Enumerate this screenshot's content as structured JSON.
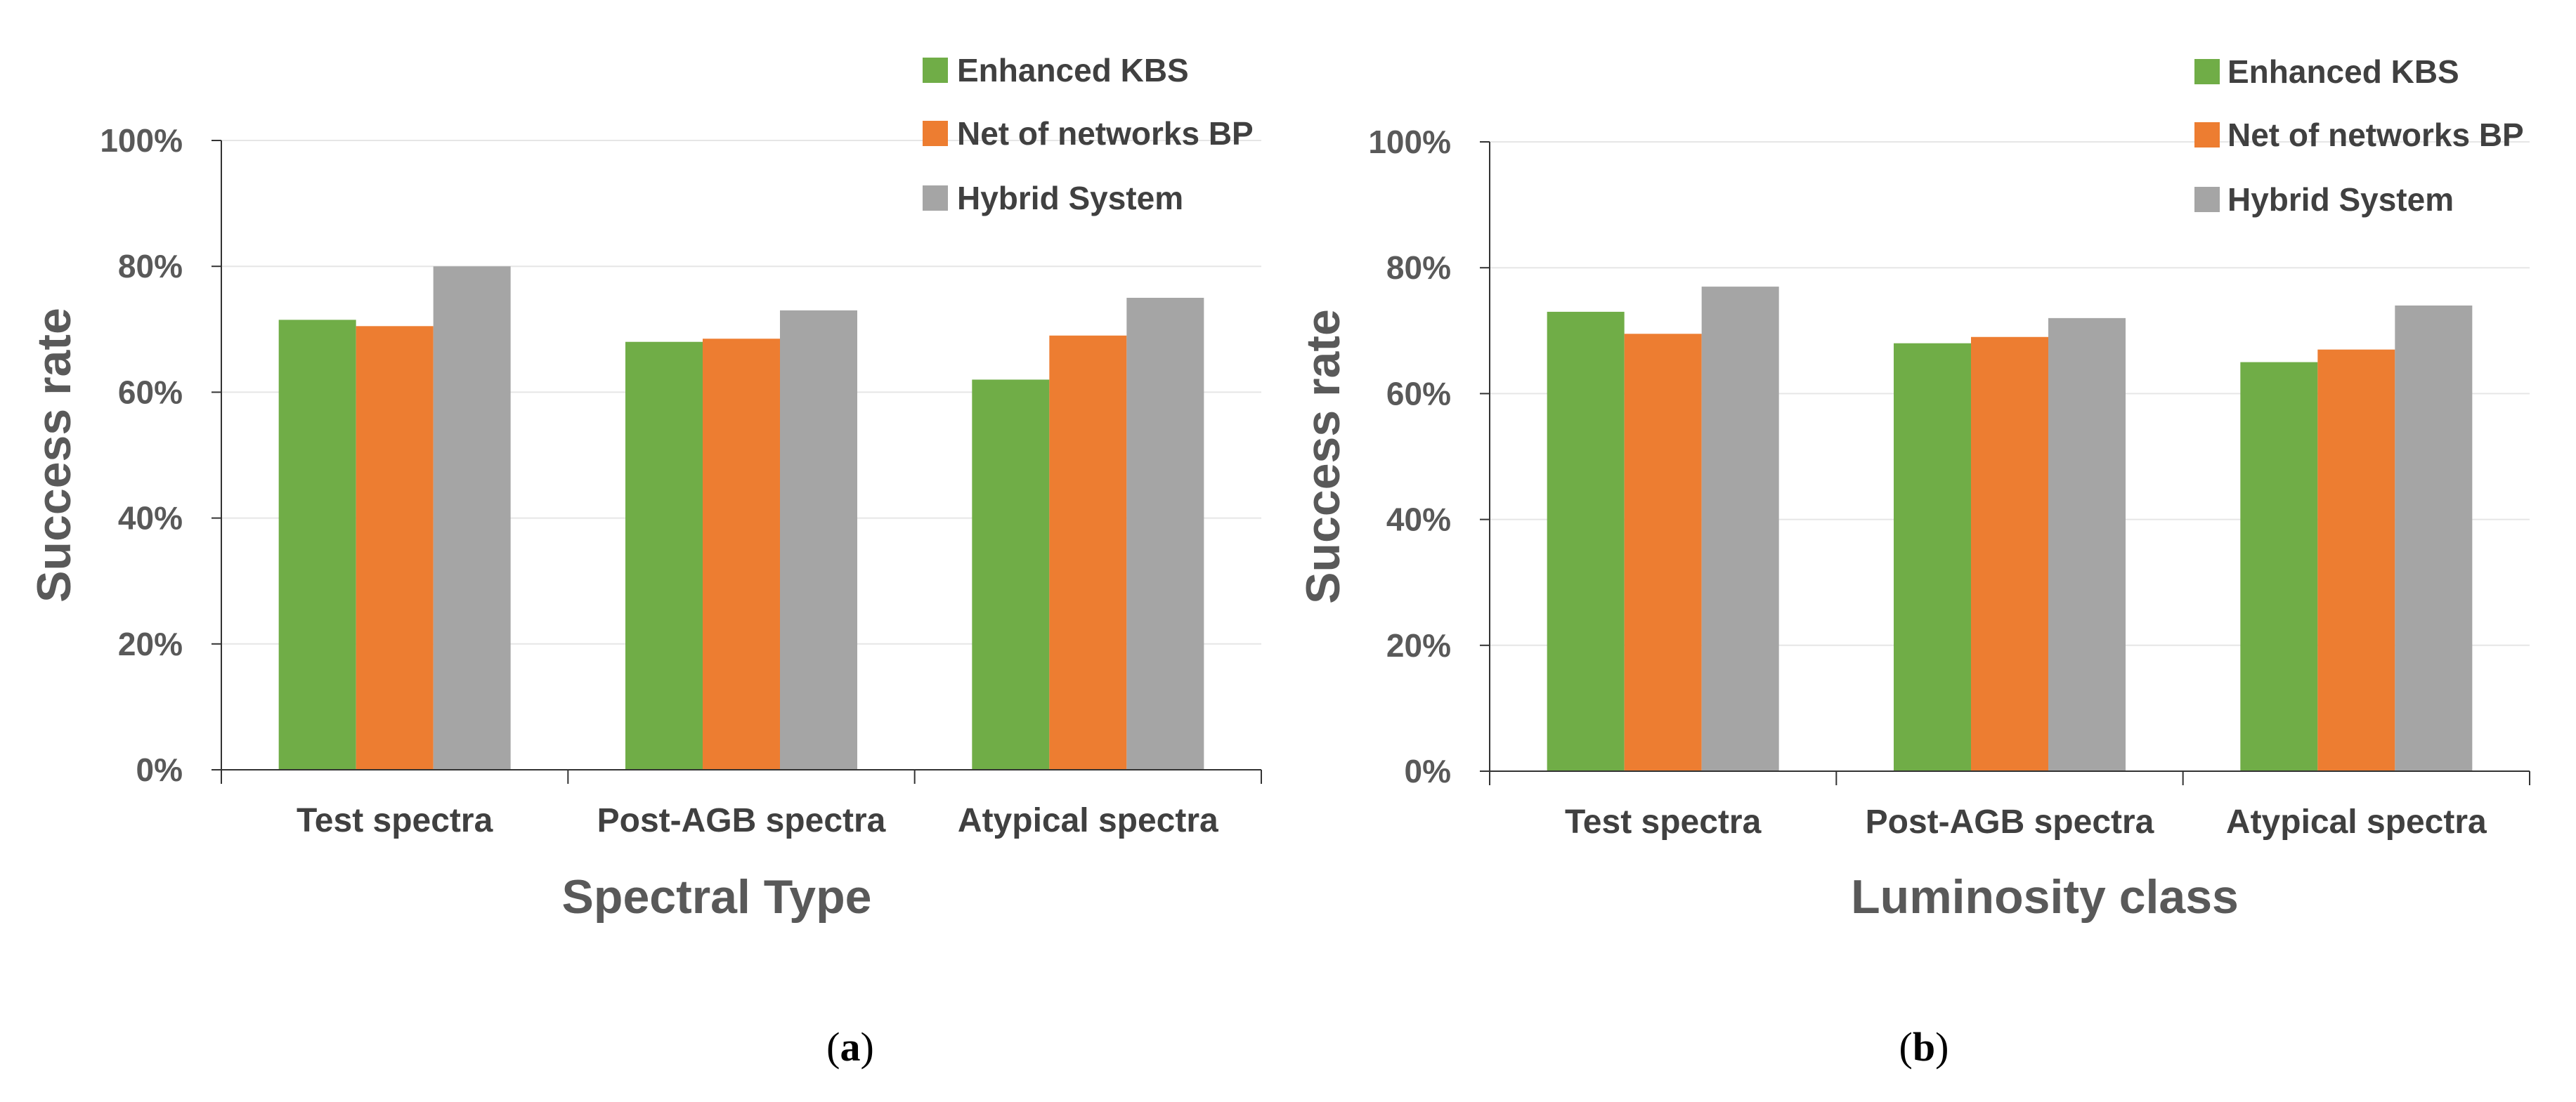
{
  "chart_data": [
    {
      "type": "bar",
      "panel_label": "a",
      "title": "",
      "xlabel": "Spectral Type",
      "ylabel": "Success rate",
      "ylim": [
        0,
        100
      ],
      "ytick_labels": [
        "0%",
        "20%",
        "40%",
        "60%",
        "80%",
        "100%"
      ],
      "grid": true,
      "legend_position": "top-right",
      "categories": [
        "Test spectra",
        "Post-AGB spectra",
        "Atypical spectra"
      ],
      "series": [
        {
          "name": "Enhanced KBS",
          "color": "#70ad47",
          "values": [
            71.5,
            68,
            62
          ]
        },
        {
          "name": "Net of networks BP",
          "color": "#ed7d31",
          "values": [
            70.5,
            68.5,
            69
          ]
        },
        {
          "name": "Hybrid System",
          "color": "#a5a5a5",
          "values": [
            80,
            73,
            75
          ]
        }
      ]
    },
    {
      "type": "bar",
      "panel_label": "b",
      "title": "",
      "xlabel": "Luminosity class",
      "ylabel": "Success rate",
      "ylim": [
        0,
        100
      ],
      "ytick_labels": [
        "0%",
        "20%",
        "40%",
        "60%",
        "80%",
        "100%"
      ],
      "grid": true,
      "legend_position": "top-right",
      "categories": [
        "Test spectra",
        "Post-AGB spectra",
        "Atypical spectra"
      ],
      "series": [
        {
          "name": "Enhanced KBS",
          "color": "#70ad47",
          "values": [
            73,
            68,
            65
          ]
        },
        {
          "name": "Net of networks BP",
          "color": "#ed7d31",
          "values": [
            69.5,
            69,
            67
          ]
        },
        {
          "name": "Hybrid System",
          "color": "#a5a5a5",
          "values": [
            77,
            72,
            74
          ]
        }
      ]
    }
  ]
}
